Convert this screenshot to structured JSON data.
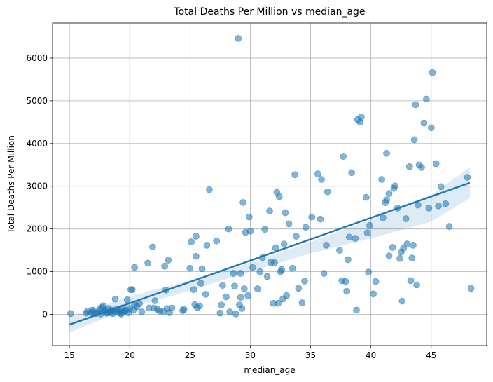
{
  "chart_data": {
    "type": "scatter",
    "title": "Total Deaths Per Million vs median_age",
    "xlabel": "median_age",
    "ylabel": "Total Deaths Per Million",
    "xlim": [
      13.6,
      49.6
    ],
    "ylim": [
      -730,
      6820
    ],
    "xticks": [
      15,
      20,
      25,
      30,
      35,
      40,
      45
    ],
    "yticks": [
      0,
      1000,
      2000,
      3000,
      4000,
      5000,
      6000
    ],
    "grid": true,
    "colors": {
      "points": "#1f77b4",
      "line": "#1f77b4",
      "band": "#1f77b4"
    },
    "regression": {
      "x": [
        15,
        48.2
      ],
      "y": [
        -240,
        3080
      ]
    },
    "confidence_band": {
      "x": [
        15,
        20,
        25,
        30,
        35,
        40,
        45,
        48.2
      ],
      "lower": [
        -420,
        140,
        560,
        1000,
        1430,
        1780,
        2170,
        2720
      ],
      "upper": [
        -60,
        420,
        800,
        1210,
        1690,
        2220,
        2780,
        3450
      ]
    },
    "points": [
      [
        15.1,
        20
      ],
      [
        16.4,
        30
      ],
      [
        16.5,
        80
      ],
      [
        16.8,
        40
      ],
      [
        16.9,
        100
      ],
      [
        17.0,
        60
      ],
      [
        17.2,
        20
      ],
      [
        17.4,
        50
      ],
      [
        17.5,
        120
      ],
      [
        17.6,
        10
      ],
      [
        17.7,
        160
      ],
      [
        17.8,
        200
      ],
      [
        17.9,
        70
      ],
      [
        18.0,
        90
      ],
      [
        18.1,
        30
      ],
      [
        18.2,
        140
      ],
      [
        18.3,
        40
      ],
      [
        18.4,
        60
      ],
      [
        18.5,
        100
      ],
      [
        18.6,
        20
      ],
      [
        18.7,
        80
      ],
      [
        18.8,
        360
      ],
      [
        18.9,
        120
      ],
      [
        19.0,
        50
      ],
      [
        19.1,
        90
      ],
      [
        19.2,
        30
      ],
      [
        19.3,
        10
      ],
      [
        19.4,
        150
      ],
      [
        19.5,
        60
      ],
      [
        19.6,
        80
      ],
      [
        19.7,
        100
      ],
      [
        19.8,
        340
      ],
      [
        19.9,
        40
      ],
      [
        20.0,
        140
      ],
      [
        20.1,
        580
      ],
      [
        20.2,
        580
      ],
      [
        20.3,
        100
      ],
      [
        20.4,
        1100
      ],
      [
        20.4,
        220
      ],
      [
        20.6,
        180
      ],
      [
        20.8,
        250
      ],
      [
        21.0,
        60
      ],
      [
        21.5,
        1200
      ],
      [
        21.6,
        150
      ],
      [
        21.9,
        1580
      ],
      [
        22.0,
        150
      ],
      [
        22.1,
        320
      ],
      [
        22.3,
        120
      ],
      [
        22.5,
        80
      ],
      [
        22.8,
        60
      ],
      [
        22.9,
        1130
      ],
      [
        23.0,
        570
      ],
      [
        23.1,
        140
      ],
      [
        23.2,
        1270
      ],
      [
        23.3,
        40
      ],
      [
        23.5,
        150
      ],
      [
        24.4,
        90
      ],
      [
        24.5,
        120
      ],
      [
        25.0,
        1080
      ],
      [
        25.1,
        1700
      ],
      [
        25.3,
        580
      ],
      [
        25.4,
        230
      ],
      [
        25.5,
        1360
      ],
      [
        25.5,
        1830
      ],
      [
        25.6,
        160
      ],
      [
        25.8,
        200
      ],
      [
        25.9,
        730
      ],
      [
        26.0,
        1070
      ],
      [
        26.3,
        470
      ],
      [
        26.4,
        1620
      ],
      [
        26.6,
        2920
      ],
      [
        27.2,
        1720
      ],
      [
        27.5,
        30
      ],
      [
        27.6,
        220
      ],
      [
        27.7,
        680
      ],
      [
        28.0,
        410
      ],
      [
        28.2,
        2000
      ],
      [
        28.3,
        60
      ],
      [
        28.6,
        960
      ],
      [
        28.7,
        660
      ],
      [
        28.8,
        10
      ],
      [
        29.0,
        6460
      ],
      [
        29.1,
        220
      ],
      [
        29.2,
        960
      ],
      [
        29.2,
        400
      ],
      [
        29.3,
        140
      ],
      [
        29.4,
        2620
      ],
      [
        29.5,
        600
      ],
      [
        29.6,
        1920
      ],
      [
        29.8,
        440
      ],
      [
        29.9,
        2280
      ],
      [
        30.0,
        1950
      ],
      [
        30.2,
        1100
      ],
      [
        30.6,
        600
      ],
      [
        30.8,
        1000
      ],
      [
        31.0,
        1330
      ],
      [
        31.2,
        1990
      ],
      [
        31.4,
        890
      ],
      [
        31.6,
        2420
      ],
      [
        31.7,
        1220
      ],
      [
        31.9,
        260
      ],
      [
        32.0,
        1210
      ],
      [
        32.1,
        1560
      ],
      [
        32.2,
        2860
      ],
      [
        32.3,
        260
      ],
      [
        32.4,
        2760
      ],
      [
        32.5,
        1000
      ],
      [
        32.6,
        1050
      ],
      [
        32.7,
        360
      ],
      [
        32.8,
        1650
      ],
      [
        32.9,
        2380
      ],
      [
        33.0,
        440
      ],
      [
        33.2,
        2120
      ],
      [
        33.5,
        1080
      ],
      [
        33.7,
        3270
      ],
      [
        33.8,
        1830
      ],
      [
        34.0,
        610
      ],
      [
        34.3,
        270
      ],
      [
        34.5,
        780
      ],
      [
        34.6,
        2040
      ],
      [
        35.1,
        2280
      ],
      [
        35.6,
        3290
      ],
      [
        35.8,
        2230
      ],
      [
        35.9,
        3160
      ],
      [
        36.1,
        960
      ],
      [
        36.3,
        1620
      ],
      [
        36.4,
        2870
      ],
      [
        37.4,
        1500
      ],
      [
        37.6,
        790
      ],
      [
        37.7,
        3700
      ],
      [
        37.9,
        770
      ],
      [
        38.0,
        540
      ],
      [
        38.1,
        1280
      ],
      [
        38.2,
        1810
      ],
      [
        38.4,
        3320
      ],
      [
        38.7,
        1780
      ],
      [
        38.8,
        100
      ],
      [
        38.9,
        4560
      ],
      [
        39.1,
        4500
      ],
      [
        39.2,
        4620
      ],
      [
        39.6,
        2740
      ],
      [
        39.7,
        1910
      ],
      [
        39.8,
        990
      ],
      [
        39.9,
        2080
      ],
      [
        40.2,
        480
      ],
      [
        40.4,
        770
      ],
      [
        40.9,
        3160
      ],
      [
        41.0,
        2260
      ],
      [
        41.2,
        2620
      ],
      [
        41.3,
        2680
      ],
      [
        41.3,
        3770
      ],
      [
        41.5,
        2830
      ],
      [
        41.5,
        1370
      ],
      [
        41.8,
        1570
      ],
      [
        41.9,
        2950
      ],
      [
        42.0,
        3010
      ],
      [
        42.2,
        2490
      ],
      [
        42.4,
        1310
      ],
      [
        42.5,
        1460
      ],
      [
        42.6,
        310
      ],
      [
        42.7,
        1550
      ],
      [
        42.9,
        2240
      ],
      [
        43.0,
        1650
      ],
      [
        43.2,
        3460
      ],
      [
        43.3,
        790
      ],
      [
        43.4,
        1320
      ],
      [
        43.5,
        1620
      ],
      [
        43.6,
        4090
      ],
      [
        43.7,
        4910
      ],
      [
        43.8,
        690
      ],
      [
        43.9,
        2560
      ],
      [
        44.0,
        3500
      ],
      [
        44.2,
        3440
      ],
      [
        44.4,
        4480
      ],
      [
        44.6,
        5040
      ],
      [
        44.8,
        2490
      ],
      [
        45.0,
        4370
      ],
      [
        45.1,
        5660
      ],
      [
        45.4,
        3530
      ],
      [
        45.6,
        2540
      ],
      [
        45.8,
        2990
      ],
      [
        46.2,
        2590
      ],
      [
        46.5,
        2060
      ],
      [
        48.0,
        3210
      ],
      [
        48.3,
        610
      ]
    ]
  }
}
